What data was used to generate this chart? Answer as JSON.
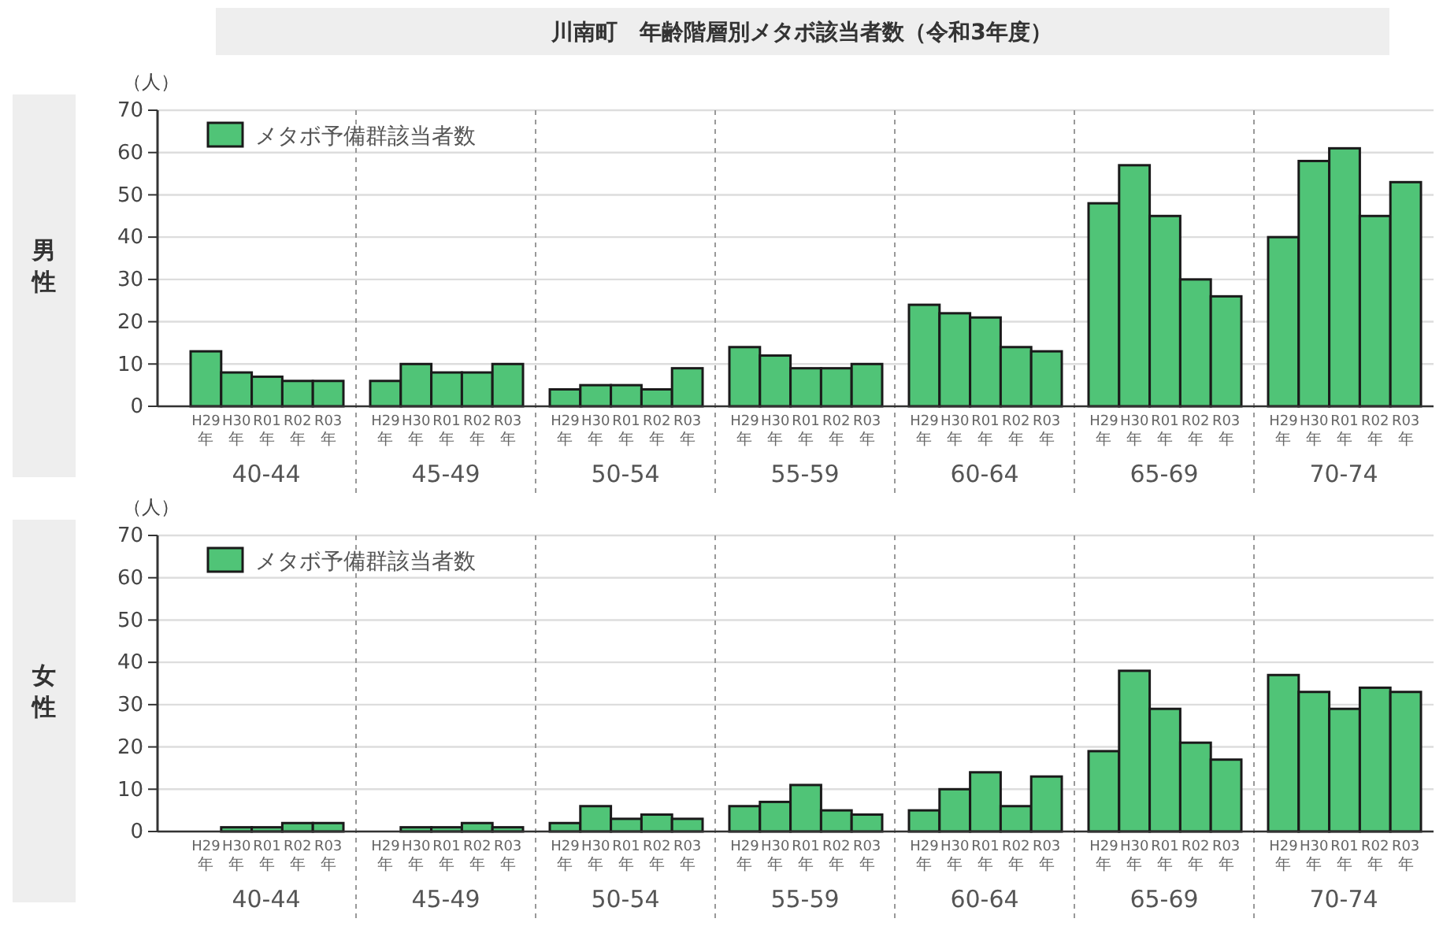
{
  "chart_data": [
    {
      "type": "bar",
      "title": "川南町　年齢階層別メタボ該当者数（令和3年度）",
      "subtitle": "男性",
      "ylabel": "（人）",
      "categories": [
        "H29年",
        "H30年",
        "R01年",
        "R02年",
        "R03年",
        "H29年",
        "H30年",
        "R01年",
        "R02年",
        "R03年",
        "H29年",
        "H30年",
        "R01年",
        "R02年",
        "R03年",
        "H29年",
        "H30年",
        "R01年",
        "R02年",
        "R03年",
        "H29年",
        "H30年",
        "R01年",
        "R02年",
        "R03年",
        "H29年",
        "H30年",
        "R01年",
        "R02年",
        "R03年",
        "H29年",
        "H30年",
        "R01年",
        "R02年",
        "R03年"
      ],
      "series": [
        {
          "name": "メタボ予備群該当者数",
          "color": "#50c477",
          "values": [
            13,
            8,
            7,
            6,
            6,
            6,
            10,
            8,
            8,
            10,
            4,
            5,
            5,
            4,
            9,
            14,
            12,
            9,
            9,
            10,
            24,
            22,
            21,
            14,
            13,
            48,
            57,
            45,
            30,
            26,
            40,
            58,
            61,
            45,
            53
          ]
        }
      ],
      "annotations": [
        "40-44",
        "45-49",
        "50-54",
        "55-59",
        "60-64",
        "65-69",
        "70-74"
      ],
      "ylim": [
        0,
        70
      ],
      "yticks": [
        0,
        10,
        20,
        30,
        40,
        50,
        60,
        70
      ],
      "grid": "y",
      "legend": "top left"
    },
    {
      "type": "bar",
      "subtitle": "女性",
      "ylabel": "（人）",
      "categories": [
        "H29年",
        "H30年",
        "R01年",
        "R02年",
        "R03年",
        "H29年",
        "H30年",
        "R01年",
        "R02年",
        "R03年",
        "H29年",
        "H30年",
        "R01年",
        "R02年",
        "R03年",
        "H29年",
        "H30年",
        "R01年",
        "R02年",
        "R03年",
        "H29年",
        "H30年",
        "R01年",
        "R02年",
        "R03年",
        "H29年",
        "H30年",
        "R01年",
        "R02年",
        "R03年",
        "H29年",
        "H30年",
        "R01年",
        "R02年",
        "R03年"
      ],
      "series": [
        {
          "name": "メタボ予備群該当者数",
          "color": "#50c477",
          "values": [
            0,
            1,
            1,
            2,
            2,
            0,
            1,
            1,
            2,
            1,
            2,
            6,
            3,
            4,
            3,
            6,
            7,
            11,
            5,
            4,
            5,
            10,
            14,
            6,
            13,
            19,
            38,
            29,
            21,
            17,
            37,
            33,
            29,
            34,
            33
          ]
        }
      ],
      "annotations": [
        "40-44",
        "45-49",
        "50-54",
        "55-59",
        "60-64",
        "65-69",
        "70-74"
      ],
      "ylim": [
        0,
        70
      ],
      "yticks": [
        0,
        10,
        20,
        30,
        40,
        50,
        60,
        70
      ],
      "grid": "y",
      "legend": "top left"
    }
  ]
}
